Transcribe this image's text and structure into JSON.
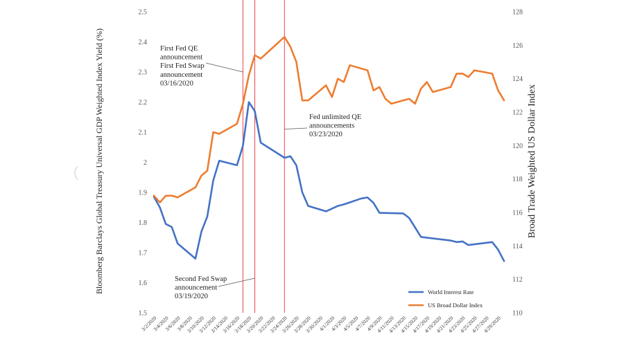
{
  "chart_data": {
    "type": "line",
    "title": "",
    "xlabel": "",
    "ylabel_left": "Bloomberg Barclays Global Treasury Universal GDP Weighted Index Yield (%)",
    "ylabel_right": "Broad Trade Weighted US Dollar Index",
    "ylim_left": [
      1.5,
      2.5
    ],
    "ylim_right": [
      110,
      128
    ],
    "yticks_left": [
      "1.5",
      "1.6",
      "1.7",
      "1.8",
      "1.9",
      "2",
      "2.1",
      "2.2",
      "2.3",
      "2.4",
      "2.5"
    ],
    "yticks_right": [
      "110",
      "112",
      "114",
      "116",
      "118",
      "120",
      "122",
      "124",
      "126",
      "128"
    ],
    "x_tick_labels": [
      "3/2/2020",
      "3/4/2020",
      "3/6/2020",
      "3/8/2020",
      "3/10/2020",
      "3/12/2020",
      "3/14/2020",
      "3/16/2020",
      "3/18/2020",
      "3/20/2020",
      "3/22/2020",
      "3/24/2020",
      "3/26/2020",
      "3/28/2020",
      "3/30/2020",
      "4/1/2020",
      "4/3/2020",
      "4/5/2020",
      "4/7/2020",
      "4/9/2020",
      "4/11/2020",
      "4/13/2020",
      "4/15/2020",
      "4/17/2020",
      "4/19/2020",
      "4/21/2020",
      "4/23/2020",
      "4/25/2020",
      "4/27/2020",
      "4/29/2020"
    ],
    "x_day_range": [
      0,
      59
    ],
    "series": [
      {
        "name": "World Interest Rate",
        "color": "#4472C4",
        "axis": "left",
        "points": [
          [
            0,
            1.885
          ],
          [
            1,
            1.85
          ],
          [
            2,
            1.795
          ],
          [
            3,
            1.785
          ],
          [
            4,
            1.73
          ],
          [
            7,
            1.68
          ],
          [
            8,
            1.77
          ],
          [
            9,
            1.82
          ],
          [
            10,
            1.94
          ],
          [
            11,
            2.005
          ],
          [
            14,
            1.99
          ],
          [
            15,
            2.055
          ],
          [
            16,
            2.2
          ],
          [
            17,
            2.17
          ],
          [
            18,
            2.065
          ],
          [
            22,
            2.015
          ],
          [
            23,
            2.02
          ],
          [
            24,
            1.99
          ],
          [
            25,
            1.9
          ],
          [
            26,
            1.855
          ],
          [
            29,
            1.837
          ],
          [
            31,
            1.855
          ],
          [
            32,
            1.86
          ],
          [
            35,
            1.88
          ],
          [
            36,
            1.883
          ],
          [
            37,
            1.865
          ],
          [
            38,
            1.832
          ],
          [
            42,
            1.83
          ],
          [
            43,
            1.815
          ],
          [
            45,
            1.752
          ],
          [
            50,
            1.74
          ],
          [
            51,
            1.735
          ],
          [
            52,
            1.737
          ],
          [
            53,
            1.725
          ],
          [
            57,
            1.735
          ],
          [
            58,
            1.71
          ],
          [
            59,
            1.672
          ]
        ]
      },
      {
        "name": "US Broad Dollar Index",
        "color": "#ED7D31",
        "axis": "right",
        "points": [
          [
            0,
            117.0
          ],
          [
            1,
            116.6
          ],
          [
            2,
            117.0
          ],
          [
            3,
            117.0
          ],
          [
            4,
            116.9
          ],
          [
            7,
            117.5
          ],
          [
            8,
            118.2
          ],
          [
            9,
            118.5
          ],
          [
            10,
            120.8
          ],
          [
            11,
            120.7
          ],
          [
            14,
            121.3
          ],
          [
            15,
            122.5
          ],
          [
            16,
            124.2
          ],
          [
            17,
            125.4
          ],
          [
            18,
            125.2
          ],
          [
            22,
            126.5
          ],
          [
            23,
            125.9
          ],
          [
            24,
            125.0
          ],
          [
            25,
            122.7
          ],
          [
            26,
            122.7
          ],
          [
            29,
            123.6
          ],
          [
            30,
            122.9
          ],
          [
            31,
            124.0
          ],
          [
            32,
            123.8
          ],
          [
            33,
            124.8
          ],
          [
            36,
            124.5
          ],
          [
            37,
            123.3
          ],
          [
            38,
            123.5
          ],
          [
            39,
            122.8
          ],
          [
            40,
            122.5
          ],
          [
            43,
            122.8
          ],
          [
            44,
            122.5
          ],
          [
            45,
            123.4
          ],
          [
            46,
            123.8
          ],
          [
            47,
            123.2
          ],
          [
            50,
            123.5
          ],
          [
            51,
            124.3
          ],
          [
            52,
            124.3
          ],
          [
            53,
            124.1
          ],
          [
            54,
            124.5
          ],
          [
            57,
            124.3
          ],
          [
            58,
            123.3
          ],
          [
            59,
            122.7
          ]
        ]
      }
    ],
    "event_lines_day": [
      15,
      17,
      22
    ],
    "annotations": [
      {
        "lines": [
          "First Fed QE",
          "announcement",
          "First Fed Swap",
          "announcement",
          "03/16/2020"
        ],
        "target_day": 15,
        "target_axis": "left",
        "target_value": 2.3
      },
      {
        "lines": [
          "Second Fed Swap",
          "announcement",
          "03/19/2020"
        ],
        "target_day": 17,
        "target_axis": "left",
        "target_value": 1.615
      },
      {
        "lines": [
          "Fed unlimited QE",
          "announcements",
          "03/23/2020"
        ],
        "target_day": 22,
        "target_axis": "left",
        "target_value": 2.11
      }
    ],
    "legend": {
      "position": "bottom-right",
      "entries": [
        {
          "label": "World Interest Rate",
          "color": "#4472C4"
        },
        {
          "label": "US Broad Dollar Index",
          "color": "#ED7D31"
        }
      ]
    }
  }
}
